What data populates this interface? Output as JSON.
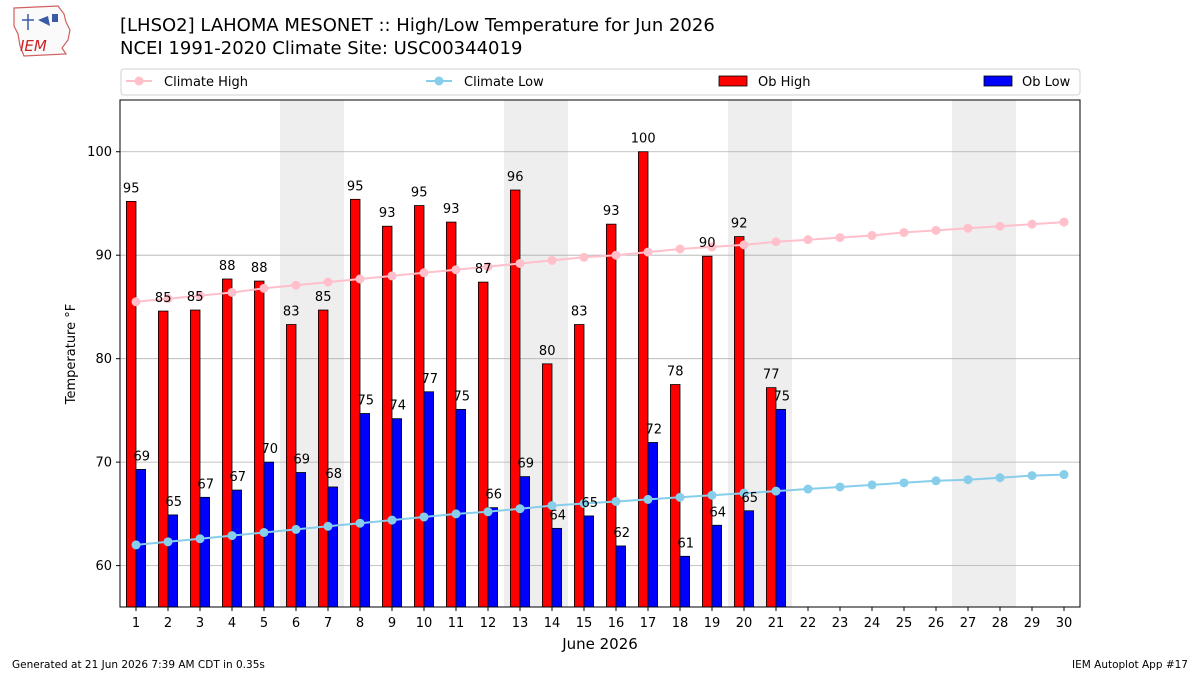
{
  "header": {
    "logo_text": "IEM",
    "title": "[LHSO2] LAHOMA MESONET :: High/Low Temperature for Jun 2026",
    "subtitle": "NCEI 1991-2020 Climate Site: USC00344019"
  },
  "footer": {
    "generated": "Generated at 21 Jun 2026 7:39 AM CDT in 0.35s",
    "app": "IEM Autoplot App #17"
  },
  "colors": {
    "climate_high": "#ffc0cb",
    "climate_low": "#87ceeb",
    "ob_high": "#ff0000",
    "ob_low": "#0000ff",
    "weekend_shade": "#eeeeee",
    "grid": "#b0b0b0"
  },
  "chart_data": {
    "type": "bar",
    "xlabel": "June 2026",
    "ylabel": "Temperature °F",
    "ylim": [
      56,
      105
    ],
    "yticks": [
      60,
      70,
      80,
      90,
      100
    ],
    "xlim": [
      0.5,
      30.5
    ],
    "grid": true,
    "legend_position": "top",
    "weekend_days": [
      6,
      7,
      13,
      14,
      20,
      21,
      27,
      28
    ],
    "days": [
      1,
      2,
      3,
      4,
      5,
      6,
      7,
      8,
      9,
      10,
      11,
      12,
      13,
      14,
      15,
      16,
      17,
      18,
      19,
      20,
      21,
      22,
      23,
      24,
      25,
      26,
      27,
      28,
      29,
      30
    ],
    "series": [
      {
        "name": "Climate High",
        "kind": "line",
        "values": [
          85.5,
          85.8,
          86.1,
          86.4,
          86.8,
          87.1,
          87.4,
          87.7,
          88.0,
          88.3,
          88.6,
          88.9,
          89.2,
          89.5,
          89.8,
          90.0,
          90.3,
          90.6,
          90.8,
          91.0,
          91.3,
          91.5,
          91.7,
          91.9,
          92.2,
          92.4,
          92.6,
          92.8,
          93.0,
          93.2
        ]
      },
      {
        "name": "Climate Low",
        "kind": "line",
        "values": [
          62.0,
          62.3,
          62.6,
          62.9,
          63.2,
          63.5,
          63.8,
          64.1,
          64.4,
          64.7,
          65.0,
          65.2,
          65.5,
          65.8,
          66.0,
          66.2,
          66.4,
          66.6,
          66.8,
          67.0,
          67.2,
          67.4,
          67.6,
          67.8,
          68.0,
          68.2,
          68.3,
          68.5,
          68.7,
          68.8
        ]
      },
      {
        "name": "Ob High",
        "kind": "bar",
        "values": [
          95.2,
          84.6,
          84.7,
          87.7,
          87.5,
          83.3,
          84.7,
          95.4,
          92.8,
          94.8,
          93.2,
          87.4,
          96.3,
          79.5,
          83.3,
          93.0,
          100.0,
          77.5,
          89.9,
          91.8,
          77.2
        ],
        "labels": [
          "95",
          "85",
          "85",
          "88",
          "88",
          "83",
          "85",
          "95",
          "93",
          "95",
          "93",
          "87",
          "96",
          "80",
          "83",
          "93",
          "100",
          "78",
          "90",
          "92",
          "77"
        ]
      },
      {
        "name": "Ob Low",
        "kind": "bar",
        "values": [
          69.3,
          64.9,
          66.6,
          67.3,
          70.0,
          69.0,
          67.6,
          74.7,
          74.2,
          76.8,
          75.1,
          65.6,
          68.6,
          63.6,
          64.8,
          61.9,
          71.9,
          60.9,
          63.9,
          65.3,
          75.1
        ],
        "labels": [
          "69",
          "65",
          "67",
          "67",
          "70",
          "69",
          "68",
          "75",
          "74",
          "77",
          "75",
          "66",
          "69",
          "64",
          "65",
          "62",
          "72",
          "61",
          "64",
          "65",
          "75"
        ]
      }
    ]
  }
}
